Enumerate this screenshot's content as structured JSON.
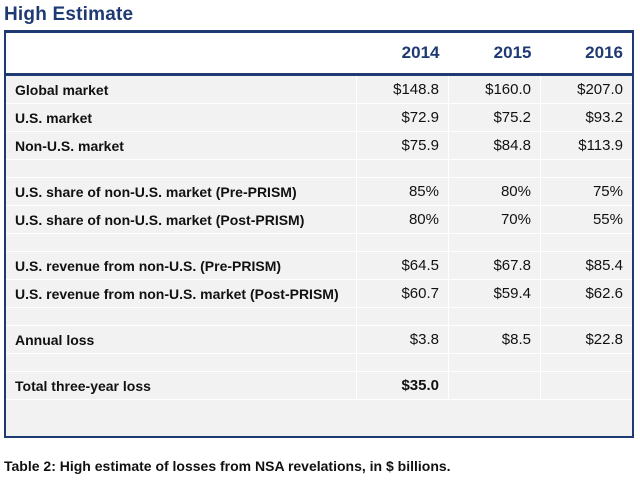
{
  "title": "High Estimate",
  "columns": [
    "2014",
    "2015",
    "2016"
  ],
  "rows": [
    {
      "label": "Global market",
      "values": [
        "$148.8",
        "$160.0",
        "$207.0"
      ]
    },
    {
      "label": "U.S. market",
      "values": [
        "$72.9",
        "$75.2",
        "$93.2"
      ]
    },
    {
      "label": "Non-U.S. market",
      "values": [
        "$75.9",
        "$84.8",
        "$113.9"
      ]
    },
    {
      "label": "U.S. share of non-U.S. market (Pre-PRISM)",
      "values": [
        "85%",
        "80%",
        "75%"
      ]
    },
    {
      "label": "U.S. share of non-U.S. market (Post-PRISM)",
      "values": [
        "80%",
        "70%",
        "55%"
      ]
    },
    {
      "label": "U.S. revenue from non-U.S. (Pre-PRISM)",
      "values": [
        "$64.5",
        "$67.8",
        "$85.4"
      ]
    },
    {
      "label": "U.S. revenue from non-U.S. market (Post-PRISM)",
      "values": [
        "$60.7",
        "$59.4",
        "$62.6"
      ]
    },
    {
      "label": "Annual loss",
      "values": [
        "$3.8",
        "$8.5",
        "$22.8"
      ]
    },
    {
      "label": "Total three-year loss",
      "values": [
        "$35.0",
        "",
        ""
      ]
    }
  ],
  "caption": "Table 2: High estimate of losses from NSA revelations, in $ billions."
}
